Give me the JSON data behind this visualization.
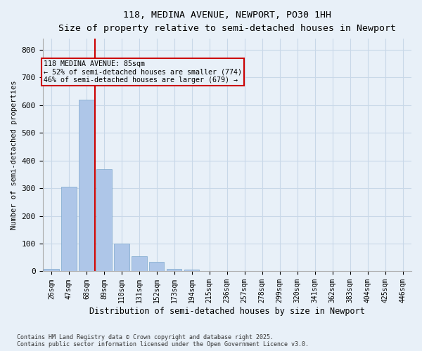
{
  "title_line1": "118, MEDINA AVENUE, NEWPORT, PO30 1HH",
  "title_line2": "Size of property relative to semi-detached houses in Newport",
  "xlabel": "Distribution of semi-detached houses by size in Newport",
  "ylabel": "Number of semi-detached properties",
  "categories": [
    "26sqm",
    "47sqm",
    "68sqm",
    "89sqm",
    "110sqm",
    "131sqm",
    "152sqm",
    "173sqm",
    "194sqm",
    "215sqm",
    "236sqm",
    "257sqm",
    "278sqm",
    "299sqm",
    "320sqm",
    "341sqm",
    "362sqm",
    "383sqm",
    "404sqm",
    "425sqm",
    "446sqm"
  ],
  "values": [
    10,
    305,
    620,
    370,
    100,
    55,
    35,
    10,
    5,
    0,
    0,
    0,
    0,
    0,
    0,
    0,
    0,
    0,
    0,
    0,
    0
  ],
  "bar_color": "#aec6e8",
  "bar_edge_color": "#7ba7cc",
  "vline_x_idx": 2.5,
  "vline_color": "#cc0000",
  "annotation_title": "118 MEDINA AVENUE: 85sqm",
  "annotation_line2": "← 52% of semi-detached houses are smaller (774)",
  "annotation_line3": "46% of semi-detached houses are larger (679) →",
  "annotation_box_color": "#cc0000",
  "ylim": [
    0,
    840
  ],
  "yticks": [
    0,
    100,
    200,
    300,
    400,
    500,
    600,
    700,
    800
  ],
  "grid_color": "#c8d8e8",
  "background_color": "#e8f0f8",
  "footnote1": "Contains HM Land Registry data © Crown copyright and database right 2025.",
  "footnote2": "Contains public sector information licensed under the Open Government Licence v3.0."
}
